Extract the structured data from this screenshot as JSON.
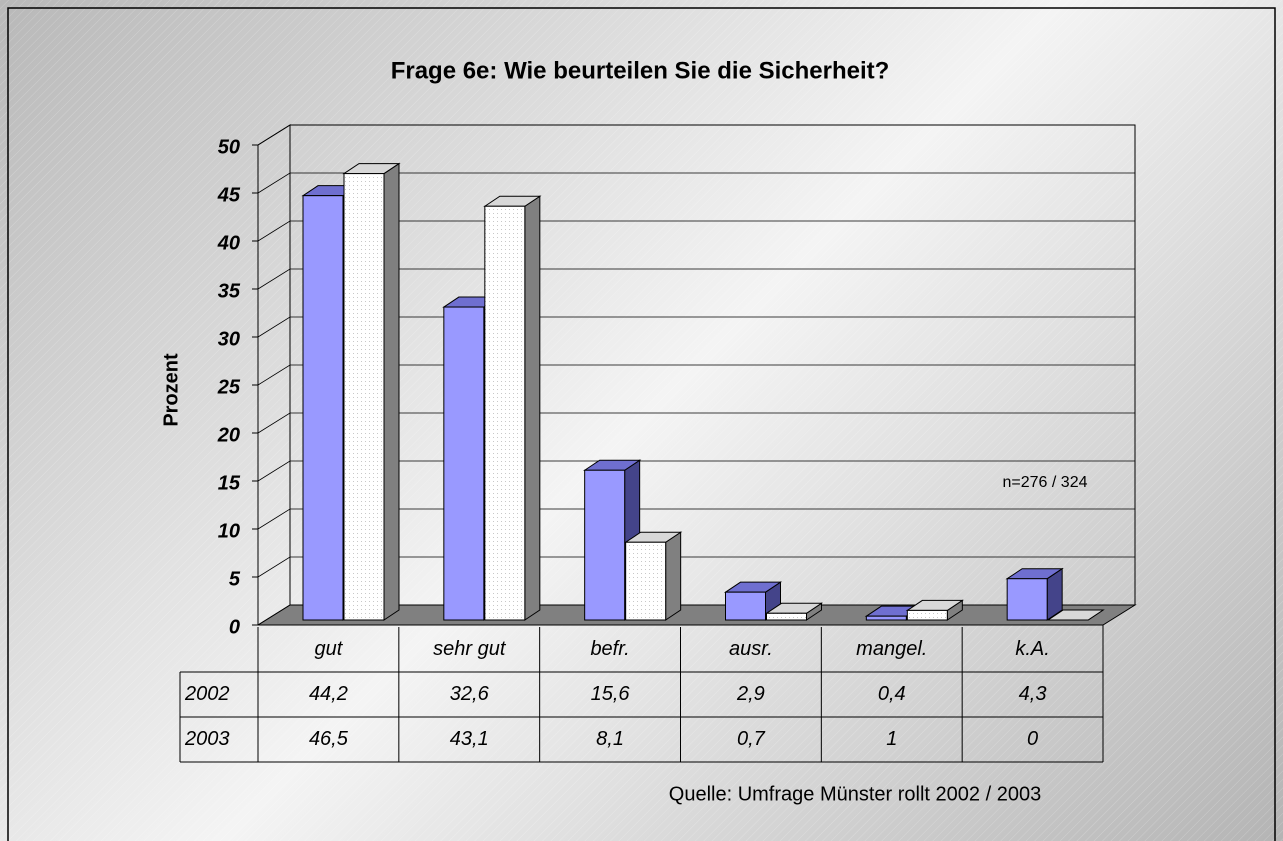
{
  "chart_data": {
    "type": "bar",
    "title": "Frage 6e: Wie beurteilen Sie die Sicherheit?",
    "y_label": "Prozent",
    "categories": [
      "gut",
      "sehr gut",
      "befr.",
      "ausr.",
      "mangel.",
      "k.A."
    ],
    "series": [
      {
        "name": "2002",
        "color": "#9999ff",
        "values": [
          44.2,
          32.6,
          15.6,
          2.9,
          0.4,
          4.3
        ],
        "value_labels": [
          "44,2",
          "32,6",
          "15,6",
          "2,9",
          "0,4",
          "4,3"
        ]
      },
      {
        "name": "2003",
        "color": "#ffffff",
        "values": [
          46.5,
          43.1,
          8.1,
          0.7,
          1,
          0
        ],
        "value_labels": [
          "46,5",
          "43,1",
          "8,1",
          "0,7",
          "1",
          "0"
        ]
      }
    ],
    "ylim": [
      0,
      50
    ],
    "yticks": [
      0,
      5,
      10,
      15,
      20,
      25,
      30,
      35,
      40,
      45,
      50
    ],
    "grid": true,
    "annotation": "n=276 / 324",
    "source": "Quelle: Umfrage Münster rollt 2002 / 2003"
  }
}
